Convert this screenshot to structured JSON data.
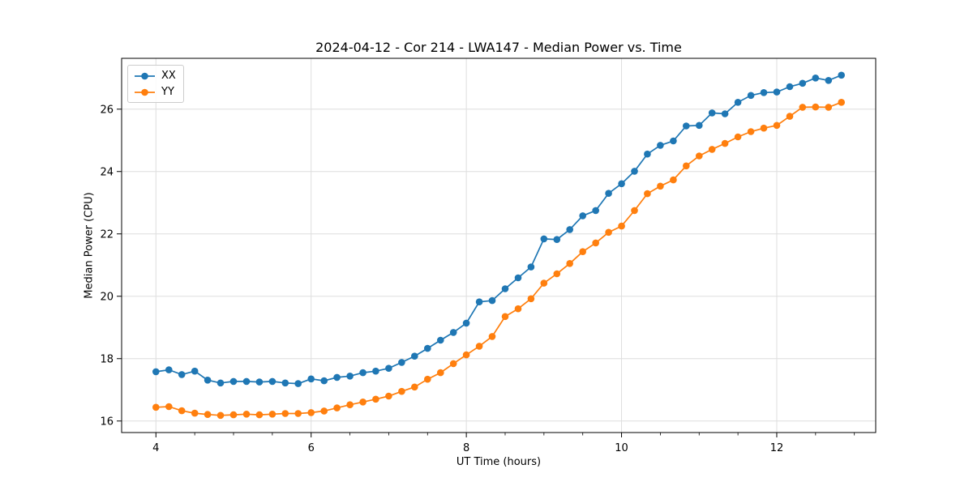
{
  "chart_data": {
    "type": "line",
    "title": "2024-04-12 - Cor 214 - LWA147 - Median Power vs. Time",
    "xlabel": "UT Time (hours)",
    "ylabel": "Median Power (CPU)",
    "xlim": [
      3.558,
      13.275
    ],
    "ylim": [
      15.63,
      27.63
    ],
    "xticks": [
      4,
      6,
      8,
      10,
      12
    ],
    "xtick_labels": [
      "4",
      "6",
      "8",
      "10",
      "12"
    ],
    "xticks_minor": [
      4.5,
      5,
      5.5,
      6.5,
      7,
      7.5,
      8.5,
      9,
      9.5,
      10.5,
      11,
      11.5,
      12.5,
      13
    ],
    "yticks": [
      16,
      18,
      20,
      22,
      24,
      26
    ],
    "ytick_labels": [
      "16",
      "18",
      "20",
      "22",
      "24",
      "26"
    ],
    "grid": true,
    "grid_color": "#dedede",
    "spine_color": "#000000",
    "legend_position": "upper left",
    "marker": "o",
    "x": [
      4.0,
      4.167,
      4.333,
      4.5,
      4.667,
      4.833,
      5.0,
      5.167,
      5.333,
      5.5,
      5.667,
      5.833,
      6.0,
      6.167,
      6.333,
      6.5,
      6.667,
      6.833,
      7.0,
      7.167,
      7.333,
      7.5,
      7.667,
      7.833,
      8.0,
      8.167,
      8.333,
      8.5,
      8.667,
      8.833,
      9.0,
      9.167,
      9.333,
      9.5,
      9.667,
      9.833,
      10.0,
      10.167,
      10.333,
      10.5,
      10.667,
      10.833,
      11.0,
      11.167,
      11.333,
      11.5,
      11.667,
      11.833,
      12.0,
      12.167,
      12.333,
      12.5,
      12.667,
      12.833
    ],
    "series": [
      {
        "name": "XX",
        "color": "#1f77b4",
        "values": [
          17.58,
          17.64,
          17.49,
          17.6,
          17.31,
          17.22,
          17.27,
          17.27,
          17.25,
          17.27,
          17.22,
          17.2,
          17.35,
          17.29,
          17.4,
          17.44,
          17.55,
          17.6,
          17.69,
          17.88,
          18.08,
          18.33,
          18.59,
          18.84,
          19.14,
          19.82,
          19.86,
          20.24,
          20.59,
          20.94,
          21.84,
          21.82,
          22.14,
          22.58,
          22.75,
          23.3,
          23.61,
          24.01,
          24.56,
          24.84,
          24.98,
          25.46,
          25.48,
          25.88,
          25.85,
          26.22,
          26.44,
          26.53,
          26.55,
          26.72,
          26.83,
          27.0,
          26.92,
          27.09
        ]
      },
      {
        "name": "YY",
        "color": "#ff7f0e",
        "values": [
          16.44,
          16.46,
          16.33,
          16.25,
          16.21,
          16.18,
          16.2,
          16.22,
          16.2,
          16.22,
          16.24,
          16.24,
          16.27,
          16.32,
          16.42,
          16.52,
          16.61,
          16.7,
          16.8,
          16.95,
          17.09,
          17.34,
          17.55,
          17.84,
          18.12,
          18.4,
          18.71,
          19.35,
          19.6,
          19.92,
          20.42,
          20.72,
          21.05,
          21.43,
          21.71,
          22.05,
          22.25,
          22.75,
          23.29,
          23.53,
          23.73,
          24.18,
          24.5,
          24.71,
          24.9,
          25.11,
          25.28,
          25.39,
          25.48,
          25.77,
          26.06,
          26.07,
          26.06,
          26.22
        ]
      }
    ]
  }
}
